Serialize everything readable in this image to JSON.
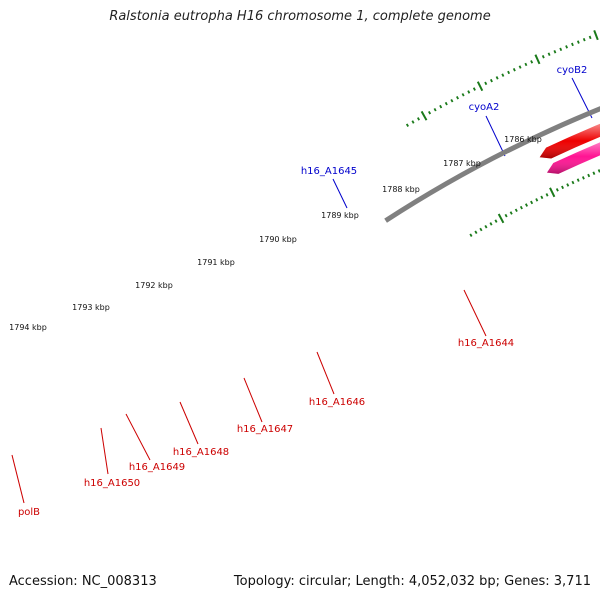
{
  "title": "Ralstonia eutropha H16 chromosome 1, complete genome",
  "footer": {
    "accession": "Accession: NC_008313",
    "stats": "Topology: circular; Length: 4,052,032 bp; Genes: 3,711"
  },
  "ruler": {
    "labels": [
      "1786 kbp",
      "1787 kbp",
      "1788 kbp",
      "1789 kbp",
      "1790 kbp",
      "1791 kbp",
      "1792 kbp",
      "1793 kbp",
      "1794 kbp"
    ]
  },
  "genes": [
    "cyoB2",
    "cyoA2",
    "h16_A1645",
    "h16_A1644",
    "h16_A1646",
    "h16_A1647",
    "h16_A1648",
    "h16_A1649",
    "h16_A1650",
    "polB"
  ],
  "colors": {
    "forward_label": "#0000cc",
    "reverse_label": "#cc0000",
    "backbone": "#808080",
    "tick": "#1a7a1a",
    "red": "#ee0000",
    "blue": "#0000ee",
    "cyan": "#00eeee",
    "orange": "#ff8800",
    "steel": "#4a7fbf",
    "gray": "#666666",
    "khaki": "#bdb76b",
    "magenta": "#ff1493"
  }
}
